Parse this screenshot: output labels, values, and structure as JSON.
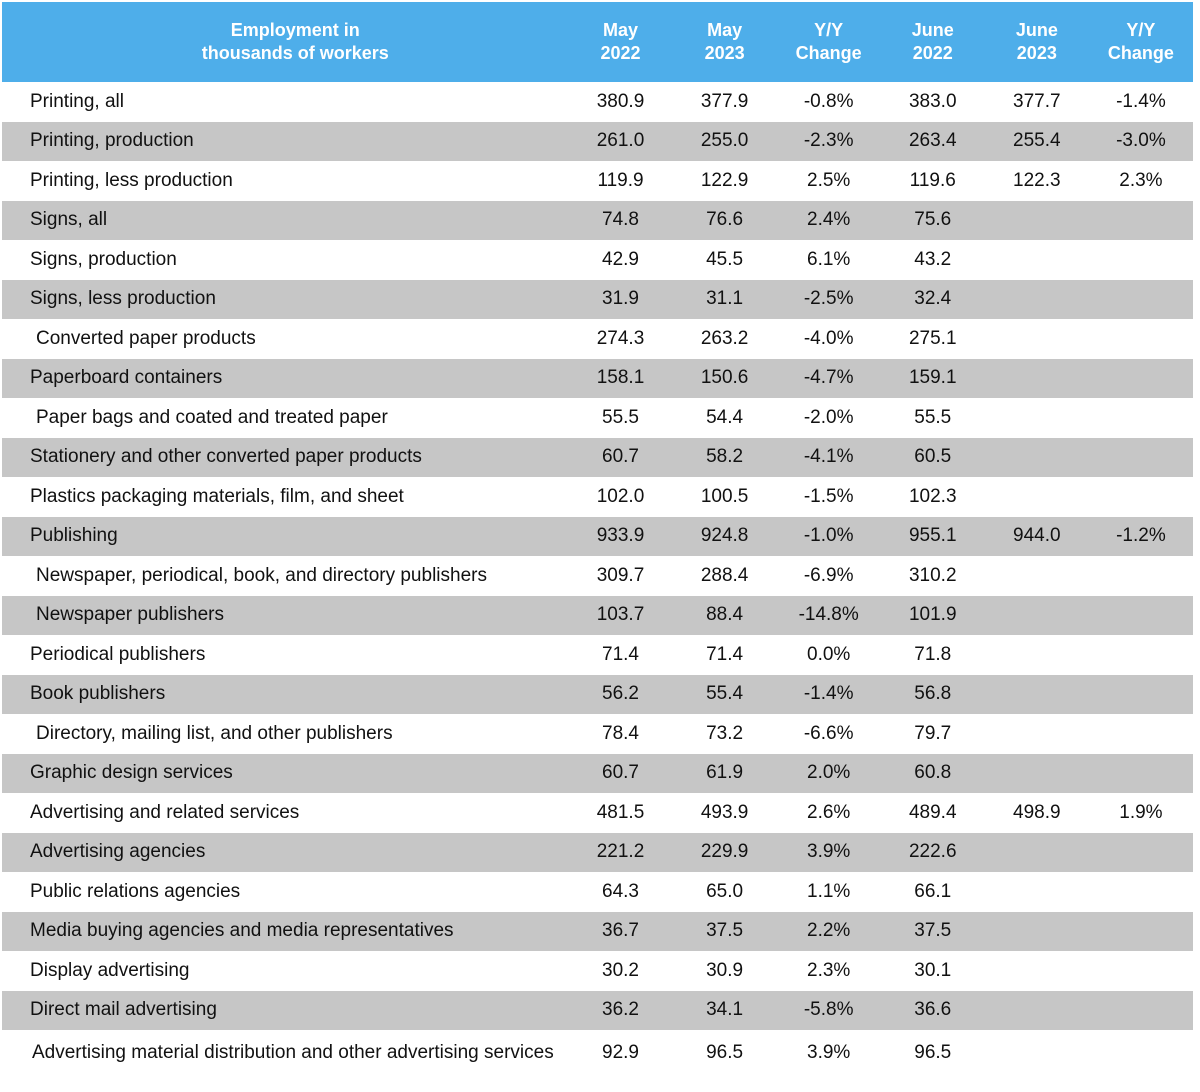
{
  "chart_data": {
    "type": "table",
    "columns": [
      "Employment in\nthousands of workers",
      "May\n2022",
      "May\n2023",
      "Y/Y\nChange",
      "June\n2022",
      "June\n2023",
      "Y/Y\nChange"
    ],
    "rows": [
      {
        "label": "Printing, all",
        "indent": false,
        "values": [
          "380.9",
          "377.9",
          "-0.8%",
          "383.0",
          "377.7",
          "-1.4%"
        ]
      },
      {
        "label": "Printing, production",
        "indent": false,
        "values": [
          "261.0",
          "255.0",
          "-2.3%",
          "263.4",
          "255.4",
          "-3.0%"
        ]
      },
      {
        "label": "Printing, less production",
        "indent": false,
        "values": [
          "119.9",
          "122.9",
          "2.5%",
          "119.6",
          "122.3",
          "2.3%"
        ]
      },
      {
        "label": "Signs, all",
        "indent": false,
        "values": [
          "74.8",
          "76.6",
          "2.4%",
          "75.6",
          "",
          ""
        ]
      },
      {
        "label": "Signs, production",
        "indent": false,
        "values": [
          "42.9",
          "45.5",
          "6.1%",
          "43.2",
          "",
          ""
        ]
      },
      {
        "label": "Signs, less production",
        "indent": false,
        "values": [
          "31.9",
          "31.1",
          "-2.5%",
          "32.4",
          "",
          ""
        ]
      },
      {
        "label": "Converted paper products",
        "indent": true,
        "values": [
          "274.3",
          "263.2",
          "-4.0%",
          "275.1",
          "",
          ""
        ]
      },
      {
        "label": "Paperboard containers",
        "indent": false,
        "values": [
          "158.1",
          "150.6",
          "-4.7%",
          "159.1",
          "",
          ""
        ]
      },
      {
        "label": "Paper bags and coated and treated paper",
        "indent": true,
        "values": [
          "55.5",
          "54.4",
          "-2.0%",
          "55.5",
          "",
          ""
        ]
      },
      {
        "label": "Stationery and other converted paper products",
        "indent": false,
        "values": [
          "60.7",
          "58.2",
          "-4.1%",
          "60.5",
          "",
          ""
        ]
      },
      {
        "label": "Plastics packaging materials, film, and sheet",
        "indent": false,
        "values": [
          "102.0",
          "100.5",
          "-1.5%",
          "102.3",
          "",
          ""
        ]
      },
      {
        "label": "Publishing",
        "indent": false,
        "values": [
          "933.9",
          "924.8",
          "-1.0%",
          "955.1",
          "944.0",
          "-1.2%"
        ]
      },
      {
        "label": "Newspaper, periodical, book, and directory publishers",
        "indent": true,
        "values": [
          "309.7",
          "288.4",
          "-6.9%",
          "310.2",
          "",
          ""
        ]
      },
      {
        "label": "Newspaper publishers",
        "indent": true,
        "values": [
          "103.7",
          "88.4",
          "-14.8%",
          "101.9",
          "",
          ""
        ]
      },
      {
        "label": "Periodical publishers",
        "indent": false,
        "values": [
          "71.4",
          "71.4",
          "0.0%",
          "71.8",
          "",
          ""
        ]
      },
      {
        "label": "Book publishers",
        "indent": false,
        "values": [
          "56.2",
          "55.4",
          "-1.4%",
          "56.8",
          "",
          ""
        ]
      },
      {
        "label": "Directory, mailing list, and other publishers",
        "indent": true,
        "values": [
          "78.4",
          "73.2",
          "-6.6%",
          "79.7",
          "",
          ""
        ]
      },
      {
        "label": "Graphic design services",
        "indent": false,
        "values": [
          "60.7",
          "61.9",
          "2.0%",
          "60.8",
          "",
          ""
        ]
      },
      {
        "label": "Advertising and related services",
        "indent": false,
        "values": [
          "481.5",
          "493.9",
          "2.6%",
          "489.4",
          "498.9",
          "1.9%"
        ]
      },
      {
        "label": "Advertising agencies",
        "indent": false,
        "values": [
          "221.2",
          "229.9",
          "3.9%",
          "222.6",
          "",
          ""
        ]
      },
      {
        "label": "Public relations agencies",
        "indent": false,
        "values": [
          "64.3",
          "65.0",
          "1.1%",
          "66.1",
          "",
          ""
        ]
      },
      {
        "label": "Media buying agencies and media representatives",
        "indent": false,
        "values": [
          "36.7",
          "37.5",
          "2.2%",
          "37.5",
          "",
          ""
        ]
      },
      {
        "label": "Display advertising",
        "indent": false,
        "values": [
          "30.2",
          "30.9",
          "2.3%",
          "30.1",
          "",
          ""
        ]
      },
      {
        "label": "Direct mail advertising",
        "indent": false,
        "values": [
          "36.2",
          "34.1",
          "-5.8%",
          "36.6",
          "",
          ""
        ]
      },
      {
        "label": "Advertising material distribution and other advertising services",
        "indent": false,
        "wrap": true,
        "values": [
          "92.9",
          "96.5",
          "3.9%",
          "96.5",
          "",
          ""
        ]
      }
    ],
    "colors": {
      "header_background": "#4eaeea",
      "header_text": "#ffffff",
      "stripe": "#c6c6c6"
    }
  }
}
